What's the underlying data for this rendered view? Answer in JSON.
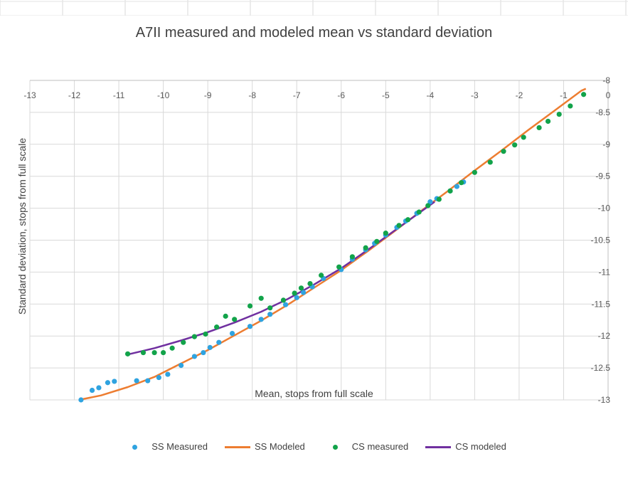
{
  "chart_data": {
    "type": "scatter",
    "title": "A7II measured and modeled mean vs standard deviation",
    "xlabel": "Mean, stops from full scale",
    "ylabel": "Standard deviation, stops from full scale",
    "xlim": [
      -13,
      0
    ],
    "ylim": [
      -13,
      -8
    ],
    "x_ticks": [
      "-13",
      "-12",
      "-11",
      "-10",
      "-9",
      "-8",
      "-7",
      "-6",
      "-5",
      "-4",
      "-3",
      "-2",
      "-1",
      "0"
    ],
    "y_ticks": [
      "-8",
      "-8.5",
      "-9",
      "-9.5",
      "-10",
      "-10.5",
      "-11",
      "-11.5",
      "-12",
      "-12.5",
      "-13"
    ],
    "grid": true,
    "legend_position": "bottom",
    "series": [
      {
        "name": "SS Measured",
        "kind": "markers",
        "color": "#2fa3e0",
        "points": [
          [
            -11.85,
            -13.0
          ],
          [
            -11.6,
            -12.85
          ],
          [
            -11.45,
            -12.81
          ],
          [
            -11.25,
            -12.73
          ],
          [
            -11.1,
            -12.71
          ],
          [
            -10.6,
            -12.7
          ],
          [
            -10.35,
            -12.7
          ],
          [
            -10.1,
            -12.65
          ],
          [
            -9.9,
            -12.6
          ],
          [
            -9.6,
            -12.46
          ],
          [
            -9.3,
            -12.32
          ],
          [
            -9.1,
            -12.26
          ],
          [
            -8.95,
            -12.18
          ],
          [
            -8.75,
            -12.1
          ],
          [
            -8.45,
            -11.96
          ],
          [
            -8.05,
            -11.85
          ],
          [
            -7.8,
            -11.74
          ],
          [
            -7.6,
            -11.66
          ],
          [
            -7.25,
            -11.51
          ],
          [
            -7.0,
            -11.4
          ],
          [
            -6.85,
            -11.32
          ],
          [
            -6.65,
            -11.23
          ],
          [
            -6.4,
            -11.1
          ],
          [
            -6.0,
            -10.96
          ],
          [
            -5.75,
            -10.8
          ],
          [
            -5.45,
            -10.65
          ],
          [
            -5.25,
            -10.55
          ],
          [
            -5.0,
            -10.42
          ],
          [
            -4.75,
            -10.3
          ],
          [
            -4.55,
            -10.2
          ],
          [
            -4.3,
            -10.08
          ],
          [
            -4.0,
            -9.9
          ],
          [
            -3.85,
            -9.85
          ],
          [
            -3.55,
            -9.73
          ],
          [
            -3.4,
            -9.66
          ],
          [
            -3.25,
            -9.59
          ]
        ]
      },
      {
        "name": "SS Modeled",
        "kind": "line",
        "color": "#ed7d31",
        "points": [
          [
            -11.9,
            -13.0
          ],
          [
            -11.4,
            -12.93
          ],
          [
            -10.8,
            -12.8
          ],
          [
            -10.2,
            -12.64
          ],
          [
            -9.6,
            -12.43
          ],
          [
            -9.0,
            -12.22
          ],
          [
            -8.4,
            -11.99
          ],
          [
            -7.8,
            -11.76
          ],
          [
            -7.2,
            -11.51
          ],
          [
            -6.6,
            -11.24
          ],
          [
            -6.0,
            -10.97
          ],
          [
            -5.4,
            -10.67
          ],
          [
            -4.8,
            -10.36
          ],
          [
            -4.2,
            -10.04
          ],
          [
            -3.6,
            -9.73
          ],
          [
            -3.0,
            -9.41
          ],
          [
            -2.4,
            -9.1
          ],
          [
            -1.8,
            -8.78
          ],
          [
            -1.2,
            -8.47
          ],
          [
            -0.6,
            -8.16
          ],
          [
            -0.5,
            -8.13
          ]
        ]
      },
      {
        "name": "CS measured",
        "kind": "markers",
        "color": "#12a34a",
        "points": [
          [
            -10.8,
            -12.28
          ],
          [
            -10.45,
            -12.26
          ],
          [
            -10.2,
            -12.26
          ],
          [
            -10.0,
            -12.26
          ],
          [
            -9.8,
            -12.19
          ],
          [
            -9.55,
            -12.1
          ],
          [
            -9.3,
            -12.01
          ],
          [
            -9.05,
            -11.97
          ],
          [
            -8.8,
            -11.86
          ],
          [
            -8.6,
            -11.69
          ],
          [
            -8.4,
            -11.74
          ],
          [
            -8.05,
            -11.53
          ],
          [
            -7.8,
            -11.41
          ],
          [
            -7.6,
            -11.56
          ],
          [
            -7.3,
            -11.44
          ],
          [
            -7.05,
            -11.33
          ],
          [
            -6.9,
            -11.25
          ],
          [
            -6.7,
            -11.18
          ],
          [
            -6.45,
            -11.05
          ],
          [
            -6.05,
            -10.92
          ],
          [
            -5.75,
            -10.76
          ],
          [
            -5.45,
            -10.62
          ],
          [
            -5.2,
            -10.52
          ],
          [
            -5.0,
            -10.39
          ],
          [
            -4.7,
            -10.27
          ],
          [
            -4.5,
            -10.18
          ],
          [
            -4.25,
            -10.06
          ],
          [
            -4.05,
            -9.96
          ],
          [
            -3.8,
            -9.86
          ],
          [
            -3.55,
            -9.73
          ],
          [
            -3.3,
            -9.6
          ],
          [
            -3.0,
            -9.44
          ],
          [
            -2.65,
            -9.28
          ],
          [
            -2.35,
            -9.11
          ],
          [
            -2.1,
            -9.01
          ],
          [
            -1.9,
            -8.89
          ],
          [
            -1.55,
            -8.74
          ],
          [
            -1.35,
            -8.64
          ],
          [
            -1.1,
            -8.53
          ],
          [
            -0.85,
            -8.4
          ],
          [
            -0.55,
            -8.22
          ]
        ]
      },
      {
        "name": "CS modeled",
        "kind": "line",
        "color": "#7030a0",
        "points": [
          [
            -10.8,
            -12.29
          ],
          [
            -10.2,
            -12.19
          ],
          [
            -9.6,
            -12.07
          ],
          [
            -9.0,
            -11.94
          ],
          [
            -8.4,
            -11.79
          ],
          [
            -7.8,
            -11.62
          ],
          [
            -7.2,
            -11.42
          ],
          [
            -6.6,
            -11.19
          ],
          [
            -6.0,
            -10.94
          ],
          [
            -5.4,
            -10.65
          ],
          [
            -4.8,
            -10.35
          ],
          [
            -4.2,
            -10.05
          ],
          [
            -3.9,
            -9.9
          ]
        ]
      }
    ]
  }
}
